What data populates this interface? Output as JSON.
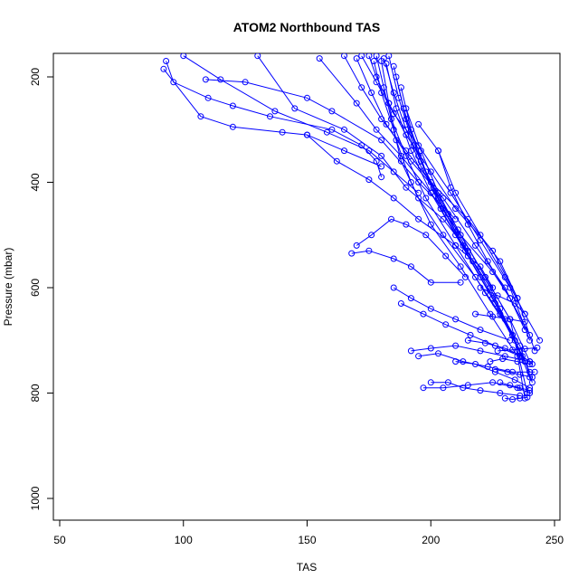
{
  "chart_data": {
    "type": "line",
    "title": "ATOM2 Northbound TAS",
    "xlabel": "TAS",
    "ylabel": "Pressure (mbar)",
    "xlim": [
      50,
      250
    ],
    "ylim": [
      1000,
      200
    ],
    "y_reversed": true,
    "x_ticks": [
      50,
      100,
      150,
      200,
      250
    ],
    "y_ticks": [
      200,
      400,
      600,
      800,
      1000
    ],
    "grid": false,
    "legend": "none",
    "marker": "open-circle",
    "color": "#0000ff",
    "series": [
      {
        "x": [
          93,
          96,
          110,
          120,
          135,
          160,
          172,
          178,
          180
        ],
        "y": [
          170,
          210,
          240,
          255,
          275,
          300,
          330,
          360,
          390
        ]
      },
      {
        "x": [
          92,
          107,
          120,
          140,
          150,
          165,
          180
        ],
        "y": [
          185,
          275,
          295,
          305,
          310,
          340,
          370
        ]
      },
      {
        "x": [
          100,
          115,
          137,
          158,
          175,
          185,
          195
        ],
        "y": [
          160,
          205,
          265,
          305,
          340,
          380,
          420
        ]
      },
      {
        "x": [
          109,
          125,
          150,
          160,
          180,
          195,
          210
        ],
        "y": [
          205,
          210,
          240,
          265,
          320,
          400,
          470
        ]
      },
      {
        "x": [
          130,
          145,
          165,
          180,
          190,
          205,
          215
        ],
        "y": [
          160,
          260,
          300,
          350,
          410,
          470,
          530
        ]
      },
      {
        "x": [
          150,
          162,
          175,
          185,
          195,
          210,
          220,
          225
        ],
        "y": [
          310,
          360,
          395,
          430,
          470,
          520,
          560,
          600
        ]
      },
      {
        "x": [
          155,
          170,
          178,
          188,
          200,
          212,
          225,
          232
        ],
        "y": [
          165,
          250,
          300,
          350,
          420,
          500,
          570,
          620
        ]
      },
      {
        "x": [
          165,
          172,
          180,
          190,
          200,
          215,
          228,
          235
        ],
        "y": [
          160,
          220,
          280,
          340,
          400,
          470,
          550,
          620
        ]
      },
      {
        "x": [
          170,
          176,
          182,
          192,
          205,
          218,
          230,
          238
        ],
        "y": [
          165,
          230,
          290,
          360,
          430,
          520,
          600,
          680
        ]
      },
      {
        "x": [
          172,
          178,
          185,
          195,
          208,
          220,
          232,
          240
        ],
        "y": [
          160,
          210,
          270,
          330,
          420,
          510,
          600,
          700
        ]
      },
      {
        "x": [
          175,
          178,
          183,
          190,
          200,
          210,
          225,
          235,
          242
        ],
        "y": [
          160,
          200,
          250,
          310,
          380,
          450,
          530,
          620,
          720
        ]
      },
      {
        "x": [
          177,
          180,
          185,
          188,
          195,
          205,
          218,
          228,
          238
        ],
        "y": [
          170,
          230,
          300,
          360,
          430,
          500,
          580,
          650,
          740
        ]
      },
      {
        "x": [
          178,
          181,
          184,
          190,
          198,
          210,
          222,
          233,
          240
        ],
        "y": [
          160,
          220,
          280,
          350,
          430,
          520,
          610,
          690,
          760
        ]
      },
      {
        "x": [
          180,
          183,
          186,
          192,
          200,
          212,
          224,
          235
        ],
        "y": [
          170,
          250,
          320,
          400,
          480,
          560,
          650,
          730
        ]
      },
      {
        "x": [
          181,
          185,
          190,
          196,
          205,
          215,
          226,
          236,
          241
        ],
        "y": [
          165,
          230,
          300,
          370,
          450,
          540,
          630,
          710,
          780
        ]
      },
      {
        "x": [
          182,
          186,
          192,
          200,
          210,
          220,
          230,
          238
        ],
        "y": [
          175,
          260,
          340,
          420,
          500,
          580,
          660,
          740
        ]
      },
      {
        "x": [
          183,
          187,
          193,
          201,
          211,
          222,
          232,
          239
        ],
        "y": [
          160,
          240,
          330,
          410,
          490,
          580,
          660,
          800
        ]
      },
      {
        "x": [
          185,
          189,
          195,
          203,
          213,
          224,
          233,
          240
        ],
        "y": [
          180,
          260,
          350,
          430,
          520,
          600,
          690,
          770
        ]
      },
      {
        "x": [
          186,
          190,
          196,
          204,
          214,
          225,
          234,
          238
        ],
        "y": [
          200,
          280,
          360,
          450,
          530,
          620,
          700,
          810
        ]
      },
      {
        "x": [
          188,
          192,
          198,
          207,
          217,
          228,
          236
        ],
        "y": [
          220,
          300,
          380,
          460,
          550,
          640,
          720
        ]
      },
      {
        "x": [
          190,
          196,
          203,
          212,
          222,
          232,
          240
        ],
        "y": [
          260,
          340,
          420,
          500,
          580,
          660,
          740
        ]
      },
      {
        "x": [
          195,
          203,
          210,
          220,
          230,
          238,
          244
        ],
        "y": [
          290,
          340,
          420,
          500,
          580,
          650,
          700
        ]
      },
      {
        "x": [
          203,
          208,
          215,
          223,
          232,
          240
        ],
        "y": [
          340,
          410,
          480,
          550,
          620,
          690
        ]
      },
      {
        "x": [
          168,
          175,
          185,
          192,
          200,
          212
        ],
        "y": [
          535,
          530,
          545,
          560,
          590,
          590
        ]
      },
      {
        "x": [
          170,
          176,
          184,
          190,
          198,
          206,
          214
        ],
        "y": [
          520,
          500,
          470,
          480,
          500,
          540,
          580
        ]
      },
      {
        "x": [
          185,
          192,
          200,
          210,
          220,
          232
        ],
        "y": [
          600,
          620,
          640,
          660,
          680,
          700
        ]
      },
      {
        "x": [
          188,
          197,
          206,
          216,
          226,
          236
        ],
        "y": [
          630,
          650,
          670,
          690,
          710,
          730
        ]
      },
      {
        "x": [
          192,
          200,
          210,
          220,
          230,
          240
        ],
        "y": [
          720,
          715,
          710,
          720,
          730,
          740
        ]
      },
      {
        "x": [
          195,
          203,
          213,
          223,
          233,
          242
        ],
        "y": [
          730,
          725,
          740,
          750,
          760,
          760
        ]
      },
      {
        "x": [
          197,
          205,
          215,
          225,
          235,
          240
        ],
        "y": [
          790,
          790,
          785,
          780,
          790,
          800
        ]
      },
      {
        "x": [
          200,
          207,
          213,
          220,
          228,
          236
        ],
        "y": [
          780,
          780,
          790,
          795,
          800,
          805
        ]
      },
      {
        "x": [
          210,
          218,
          226,
          234,
          240
        ],
        "y": [
          740,
          745,
          760,
          775,
          790
        ]
      },
      {
        "x": [
          215,
          222,
          230,
          237,
          241
        ],
        "y": [
          700,
          705,
          715,
          730,
          745
        ]
      },
      {
        "x": [
          218,
          225,
          232,
          238
        ],
        "y": [
          650,
          655,
          660,
          665
        ]
      },
      {
        "x": [
          220,
          227,
          234,
          238
        ],
        "y": [
          600,
          615,
          630,
          650
        ]
      },
      {
        "x": [
          224,
          229,
          235,
          240
        ],
        "y": [
          740,
          735,
          740,
          745
        ]
      },
      {
        "x": [
          226,
          231,
          236,
          241
        ],
        "y": [
          755,
          760,
          765,
          770
        ]
      },
      {
        "x": [
          228,
          232,
          236,
          240
        ],
        "y": [
          780,
          785,
          790,
          795
        ]
      },
      {
        "x": [
          230,
          233,
          236,
          239
        ],
        "y": [
          810,
          812,
          810,
          808
        ]
      },
      {
        "x": [
          227,
          233,
          238,
          243
        ],
        "y": [
          720,
          718,
          716,
          714
        ]
      }
    ]
  }
}
